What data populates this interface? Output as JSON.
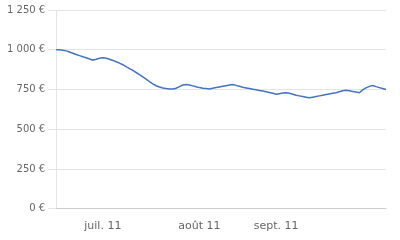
{
  "chart_data": {
    "type": "line",
    "categories": [
      null,
      null,
      null,
      null,
      null,
      null,
      null,
      null,
      null,
      null,
      null,
      null,
      null,
      null,
      "juil. 11",
      null,
      null,
      null,
      null,
      null,
      null,
      null,
      null,
      null,
      null,
      null,
      null,
      null,
      null,
      null,
      null,
      null,
      null,
      null,
      null,
      null,
      null,
      null,
      null,
      null,
      null,
      null,
      null,
      "août 11",
      null,
      null,
      null,
      null,
      null,
      null,
      null,
      null,
      null,
      null,
      null,
      null,
      null,
      null,
      null,
      null,
      null,
      null,
      null,
      null,
      null,
      null,
      "sept. 11",
      null,
      null,
      null,
      null,
      null,
      null,
      null,
      null,
      null,
      null,
      null,
      null,
      null,
      null,
      null,
      null,
      null,
      null,
      null,
      null,
      null,
      null,
      null,
      null,
      null,
      null,
      null,
      null,
      null,
      null,
      null,
      null,
      null
    ],
    "values": [
      1000,
      1000,
      997,
      993,
      986,
      978,
      970,
      963,
      956,
      950,
      942,
      935,
      940,
      946,
      950,
      946,
      940,
      933,
      925,
      916,
      906,
      894,
      882,
      870,
      857,
      844,
      830,
      815,
      800,
      786,
      774,
      766,
      760,
      756,
      754,
      753,
      758,
      768,
      778,
      782,
      779,
      773,
      767,
      762,
      758,
      756,
      754,
      758,
      762,
      766,
      770,
      774,
      778,
      782,
      776,
      770,
      764,
      760,
      756,
      752,
      748,
      744,
      740,
      736,
      731,
      726,
      720,
      724,
      728,
      730,
      726,
      720,
      714,
      710,
      706,
      702,
      698,
      702,
      706,
      710,
      714,
      718,
      722,
      726,
      730,
      736,
      742,
      746,
      742,
      738,
      734,
      730,
      748,
      760,
      770,
      775,
      768,
      762,
      756,
      750
    ],
    "color": "#4472C4",
    "ylim": [
      0,
      1250
    ],
    "yticks": [
      {
        "value": 0,
        "label": "0 €"
      },
      {
        "value": 250,
        "label": "250 €"
      },
      {
        "value": 500,
        "label": "500 €"
      },
      {
        "value": 750,
        "label": "750 €"
      },
      {
        "value": 1000,
        "label": "1 000 €"
      },
      {
        "value": 1250,
        "label": "1 250 €"
      }
    ],
    "grid": true
  }
}
